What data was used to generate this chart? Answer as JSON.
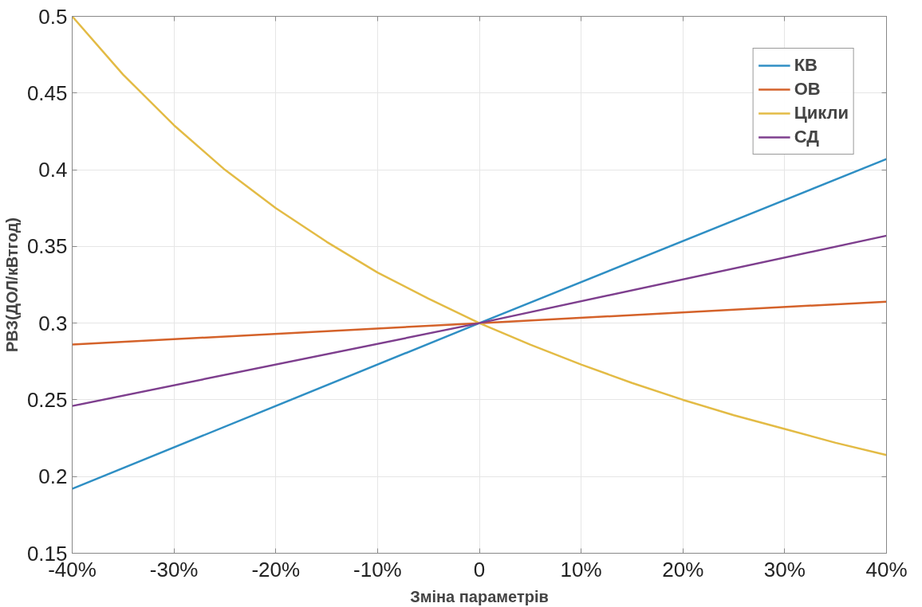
{
  "chart_data": {
    "type": "line",
    "xlabel": "Зміна параметрів",
    "ylabel": "РВЗ(ДОЛ/кВтгод)",
    "xlim": [
      -40,
      40
    ],
    "ylim": [
      0.15,
      0.5
    ],
    "xticks": [
      {
        "value": -40,
        "label": "-40%"
      },
      {
        "value": -30,
        "label": "-30%"
      },
      {
        "value": -20,
        "label": "-20%"
      },
      {
        "value": -10,
        "label": "-10%"
      },
      0,
      {
        "value": 10,
        "label": "10%"
      },
      {
        "value": 20,
        "label": "20%"
      },
      {
        "value": 30,
        "label": "30%"
      },
      {
        "value": 40,
        "label": "40%"
      }
    ],
    "yticks": [
      0.15,
      0.2,
      0.25,
      0.3,
      0.35,
      0.4,
      0.45,
      0.5
    ],
    "grid": true,
    "legend": "top right",
    "line_style": "solid",
    "marker": "none",
    "series": [
      {
        "name": "КВ",
        "color": "#2f8fc4",
        "x": [
          -40,
          0,
          40
        ],
        "values": [
          0.192,
          0.3,
          0.407
        ]
      },
      {
        "name": "ОВ",
        "color": "#d4622a",
        "x": [
          -40,
          0,
          40
        ],
        "values": [
          0.286,
          0.3,
          0.314
        ]
      },
      {
        "name": "Цикли",
        "color": "#e3bb45",
        "x": [
          -40,
          -35,
          -30,
          -25,
          -20,
          -15,
          -10,
          -5,
          0,
          5,
          10,
          15,
          20,
          25,
          30,
          35,
          40
        ],
        "values": [
          0.5,
          0.462,
          0.429,
          0.4,
          0.375,
          0.353,
          0.333,
          0.316,
          0.3,
          0.286,
          0.273,
          0.261,
          0.25,
          0.24,
          0.231,
          0.222,
          0.214
        ]
      },
      {
        "name": "СД",
        "color": "#7e3f8e",
        "x": [
          -40,
          0,
          40
        ],
        "values": [
          0.246,
          0.3,
          0.357
        ]
      }
    ]
  }
}
